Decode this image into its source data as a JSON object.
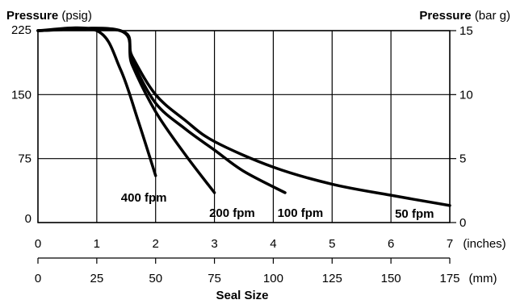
{
  "chart_data": {
    "type": "line",
    "left_axis": {
      "label_bold": "Pressure",
      "label_unit": "(psig)",
      "ticks": [
        0,
        75,
        150,
        225
      ],
      "ylim": [
        0,
        225
      ]
    },
    "right_axis": {
      "label_bold": "Pressure",
      "label_unit": "(bar g)",
      "ticks": [
        0,
        5,
        10,
        15
      ]
    },
    "x_axis_inches": {
      "unit_label": "(inches)",
      "ticks": [
        0,
        1,
        2,
        3,
        4,
        5,
        6,
        7
      ],
      "xlim": [
        0,
        7
      ]
    },
    "x_axis_mm": {
      "unit_label": "(mm)",
      "ticks": [
        0,
        25,
        50,
        75,
        100,
        125,
        150,
        175
      ]
    },
    "xlabel": "Seal Size",
    "grid": true,
    "series": [
      {
        "name": "400 fpm",
        "x": [
          0,
          1.0,
          1.4,
          1.7,
          2.0
        ],
        "y": [
          225,
          225,
          180,
          120,
          55
        ]
      },
      {
        "name": "200 fpm",
        "x": [
          0,
          1.4,
          1.6,
          2.0,
          2.5,
          3.0
        ],
        "y": [
          225,
          225,
          185,
          130,
          80,
          35
        ]
      },
      {
        "name": "100 fpm",
        "x": [
          0,
          1.4,
          1.6,
          2.0,
          2.5,
          3.0,
          3.5,
          4.2
        ],
        "y": [
          225,
          225,
          190,
          140,
          110,
          85,
          60,
          35
        ]
      },
      {
        "name": "50 fpm",
        "x": [
          0,
          1.4,
          1.6,
          2.0,
          2.5,
          3.0,
          4.0,
          5.0,
          6.0,
          7.0
        ],
        "y": [
          225,
          225,
          195,
          150,
          120,
          95,
          65,
          45,
          32,
          20
        ]
      }
    ]
  }
}
